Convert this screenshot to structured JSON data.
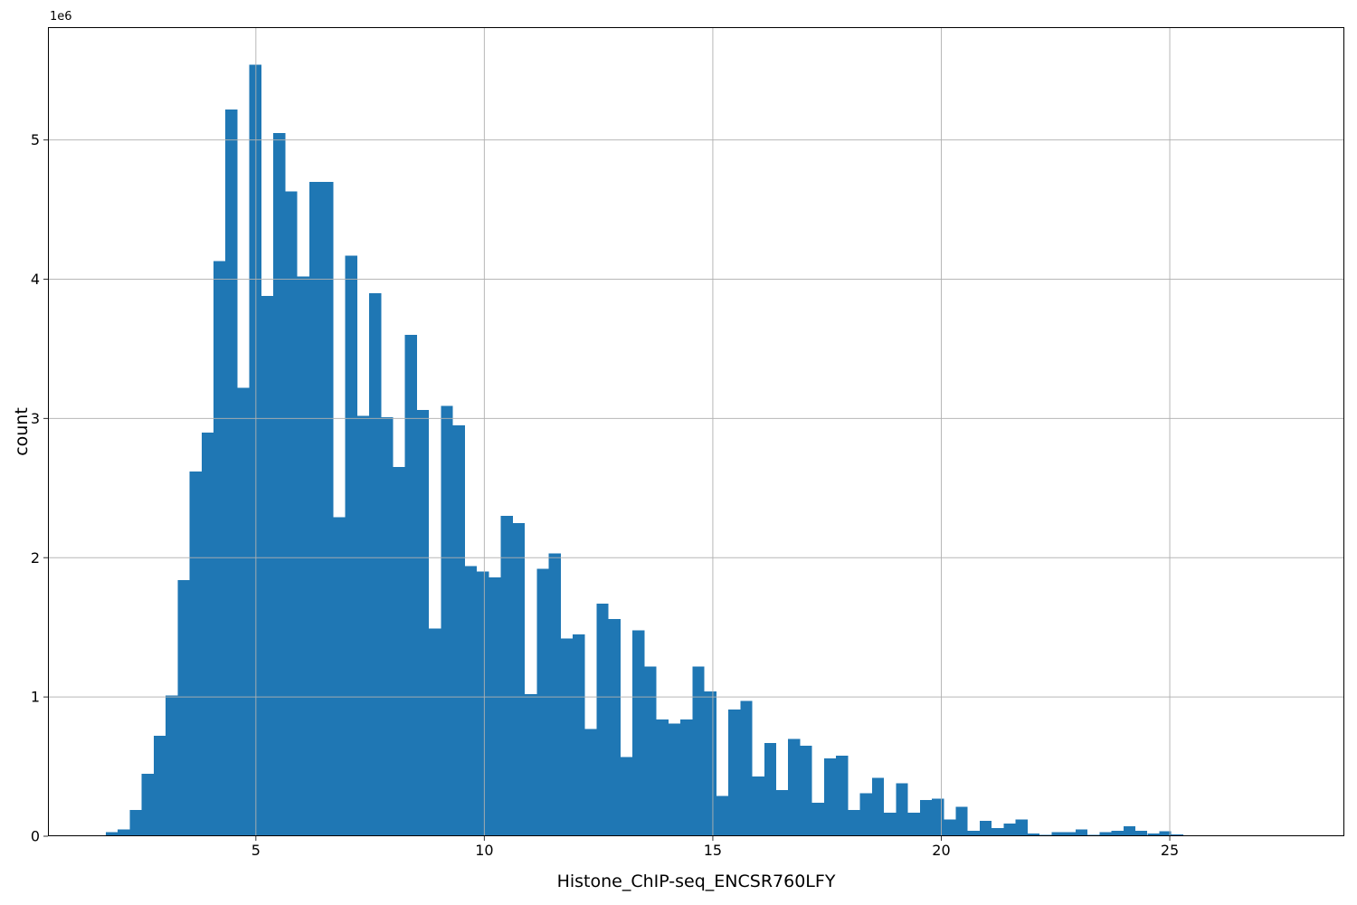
{
  "chart_data": {
    "type": "bar",
    "subtype": "histogram",
    "title": "",
    "xlabel": "Histone_ChIP-seq_ENCSR760LFY",
    "ylabel": "count",
    "y_offset_label": "1e6",
    "xlim": [
      0.45,
      28.82
    ],
    "ylim": [
      0,
      5810000
    ],
    "xticks": [
      5,
      10,
      15,
      20,
      25
    ],
    "xtick_labels": [
      "5",
      "10",
      "15",
      "20",
      "25"
    ],
    "yticks": [
      0,
      1000000,
      2000000,
      3000000,
      4000000,
      5000000
    ],
    "ytick_labels": [
      "0",
      "1",
      "2",
      "3",
      "4",
      "5"
    ],
    "grid": true,
    "legend_position": "none",
    "bins": {
      "start": 1.715,
      "width": 0.262
    },
    "counts": [
      30000,
      50000,
      190000,
      450000,
      720000,
      1010000,
      1840000,
      2620000,
      2900000,
      4130000,
      5220000,
      3220000,
      5540000,
      3880000,
      5050000,
      4630000,
      4020000,
      4700000,
      4700000,
      2290000,
      4170000,
      3020000,
      3900000,
      3010000,
      2650000,
      3600000,
      3060000,
      1490000,
      3090000,
      2950000,
      1940000,
      1900000,
      1860000,
      2300000,
      2250000,
      1020000,
      1920000,
      2030000,
      1420000,
      1450000,
      770000,
      1670000,
      1560000,
      570000,
      1480000,
      1220000,
      840000,
      810000,
      840000,
      1220000,
      1040000,
      290000,
      910000,
      970000,
      430000,
      670000,
      330000,
      700000,
      650000,
      240000,
      560000,
      580000,
      190000,
      310000,
      420000,
      170000,
      380000,
      170000,
      260000,
      270000,
      120000,
      210000,
      40000,
      110000,
      60000,
      90000,
      120000,
      20000,
      10000,
      30000,
      30000,
      50000,
      10000,
      30000,
      40000,
      70000,
      40000,
      20000,
      35000,
      13000,
      7000,
      7000,
      0,
      7000,
      0,
      0,
      7000
    ],
    "bar_color": "#1f77b4",
    "grid_color": "#b0b0b0",
    "spine_color": "#000000",
    "tick_color": "#333333",
    "background": "#ffffff"
  }
}
